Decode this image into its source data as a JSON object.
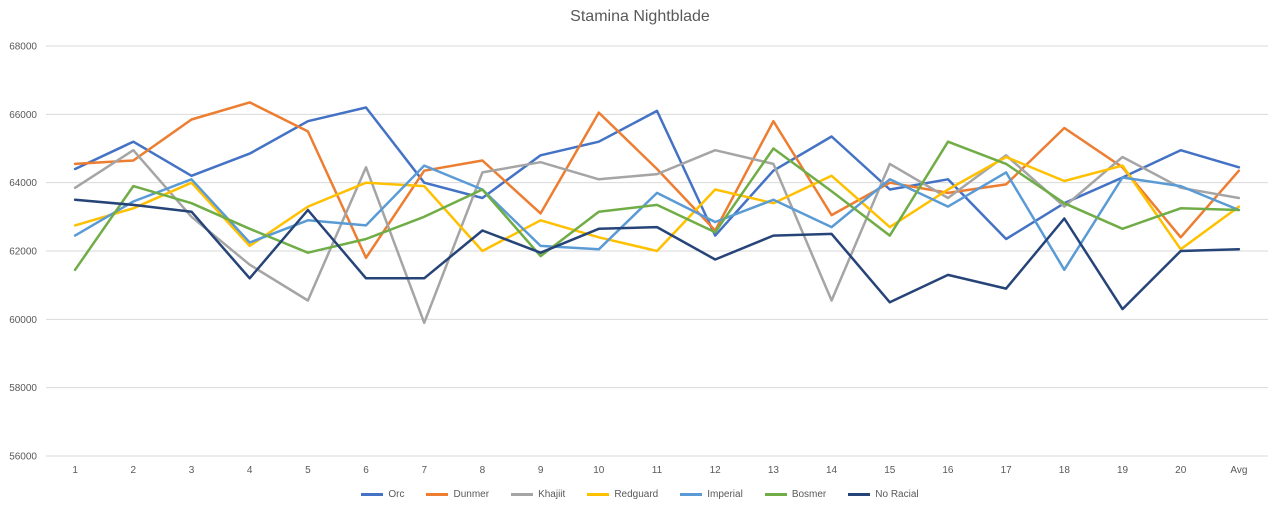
{
  "chart_data": {
    "type": "line",
    "title": "Stamina Nightblade",
    "xlabel": "",
    "ylabel": "",
    "ylim": [
      56000,
      68000
    ],
    "yticks": [
      56000,
      58000,
      60000,
      62000,
      64000,
      66000,
      68000
    ],
    "ytick_labels": [
      "56000",
      "58000",
      "60000",
      "62000",
      "64000",
      "66000",
      "68000"
    ],
    "categories": [
      "1",
      "2",
      "3",
      "4",
      "5",
      "6",
      "7",
      "8",
      "9",
      "10",
      "11",
      "12",
      "13",
      "14",
      "15",
      "16",
      "17",
      "18",
      "19",
      "20",
      "Avg"
    ],
    "grid": true,
    "legend_position": "bottom",
    "series": [
      {
        "name": "Orc",
        "color": "#4472C4",
        "values": [
          64400,
          65200,
          64200,
          64850,
          65800,
          66200,
          64000,
          63550,
          64800,
          65200,
          66100,
          62450,
          64350,
          65350,
          63800,
          64100,
          62350,
          63400,
          64150,
          64950,
          64450
        ]
      },
      {
        "name": "Dunmer",
        "color": "#ED7D31",
        "values": [
          64550,
          64650,
          65850,
          66350,
          65500,
          61800,
          64350,
          64650,
          63100,
          66050,
          64400,
          62600,
          65800,
          63050,
          64000,
          63700,
          63950,
          65600,
          64450,
          62400,
          64350
        ]
      },
      {
        "name": "Khajiit",
        "color": "#A5A5A5",
        "values": [
          63850,
          64950,
          63000,
          61600,
          60550,
          64450,
          59900,
          64300,
          64600,
          64100,
          64250,
          64950,
          64550,
          60550,
          64550,
          63550,
          64800,
          63300,
          64750,
          63850,
          63550
        ]
      },
      {
        "name": "Redguard",
        "color": "#FFC000",
        "values": [
          62750,
          63250,
          64000,
          62150,
          63300,
          64000,
          63900,
          62000,
          62900,
          62400,
          62000,
          63800,
          63400,
          64200,
          62700,
          63800,
          64750,
          64050,
          64500,
          62050,
          63300
        ]
      },
      {
        "name": "Imperial",
        "color": "#5B9BD5",
        "values": [
          62450,
          63450,
          64100,
          62250,
          62900,
          62750,
          64500,
          63800,
          62150,
          62050,
          63700,
          62850,
          63500,
          62700,
          64100,
          63300,
          64300,
          61450,
          64150,
          63900,
          63200
        ]
      },
      {
        "name": "Bosmer",
        "color": "#70AD47",
        "values": [
          61450,
          63900,
          63400,
          62650,
          61950,
          62350,
          63000,
          63800,
          61850,
          63150,
          63350,
          62550,
          65000,
          63750,
          62450,
          65200,
          64550,
          63400,
          62650,
          63250,
          63200
        ]
      },
      {
        "name": "No Racial",
        "color": "#264478",
        "values": [
          63500,
          63350,
          63150,
          61200,
          63200,
          61200,
          61200,
          62600,
          61950,
          62650,
          62700,
          61750,
          62450,
          62500,
          60500,
          61300,
          60900,
          62950,
          60300,
          62000,
          62050
        ]
      }
    ]
  }
}
